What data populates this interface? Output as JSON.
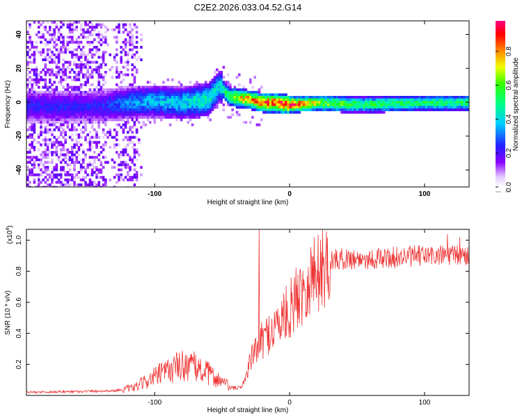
{
  "chart_data": [
    {
      "type": "heatmap",
      "title": "C2E2.2026.033.04.52.G14",
      "xlabel": "Height of straight line (km)",
      "ylabel": "Frequency (Hz)",
      "xlim": [
        -195,
        133
      ],
      "ylim": [
        -50,
        48
      ],
      "xticks": [
        -100,
        0,
        100
      ],
      "yticks": [
        -40,
        -20,
        0,
        20,
        40
      ],
      "colorbar": {
        "label": "Normalized spectral amplitude",
        "range": [
          0,
          0.98
        ],
        "ticks": [
          "0.0",
          "0.2",
          "0.4",
          "0.6",
          "0.8"
        ],
        "ticks_values": [
          0,
          0.2,
          0.4,
          0.6,
          0.8
        ]
      },
      "ridge": {
        "description": "main spectral line",
        "x": [
          -140,
          -120,
          -100,
          -80,
          -60,
          -52,
          -45,
          -40,
          -30,
          -20,
          -10,
          0,
          20,
          50,
          100,
          133
        ],
        "center_hz": [
          -2,
          0,
          1,
          0,
          2,
          10,
          4,
          3,
          2,
          0,
          0,
          -1,
          0,
          -1,
          0,
          0
        ],
        "amplitude": [
          0.25,
          0.35,
          0.4,
          0.42,
          0.5,
          0.45,
          0.6,
          0.75,
          0.85,
          0.9,
          0.95,
          0.98,
          0.7,
          0.6,
          0.55,
          0.55
        ]
      }
    },
    {
      "type": "line",
      "xlabel": "Height of straight line (km)",
      "ylabel": "SNR (10 * v/v)",
      "y_multiplier": "(x10",
      "y_multiplier_exp": "4",
      "y_multiplier_close": ")",
      "xlim": [
        -195,
        133
      ],
      "ylim": [
        0,
        1.07
      ],
      "xticks": [
        -100,
        0,
        100
      ],
      "yticks": [
        0.2,
        0.4,
        0.6,
        0.8,
        1.0
      ],
      "ytick_labels": [
        "0.2",
        "0.4",
        "0.6",
        "0.8",
        "1.0"
      ],
      "color": "#ee3333",
      "envelope": {
        "x": [
          -195,
          -130,
          -115,
          -100,
          -85,
          -75,
          -60,
          -45,
          -37,
          -33,
          -30,
          -25,
          -20,
          -10,
          0,
          10,
          20,
          30,
          40,
          60,
          80,
          100,
          120,
          133
        ],
        "y": [
          0.02,
          0.03,
          0.05,
          0.12,
          0.18,
          0.2,
          0.14,
          0.06,
          0.05,
          0.1,
          0.2,
          0.3,
          0.36,
          0.45,
          0.55,
          0.7,
          0.8,
          0.87,
          0.88,
          0.88,
          0.89,
          0.9,
          0.9,
          0.9
        ]
      },
      "spikes": [
        {
          "x": -22.5,
          "y": 1.07
        },
        {
          "x": 117,
          "y": 1.04
        },
        {
          "x": 126,
          "y": 1.02
        }
      ]
    }
  ]
}
